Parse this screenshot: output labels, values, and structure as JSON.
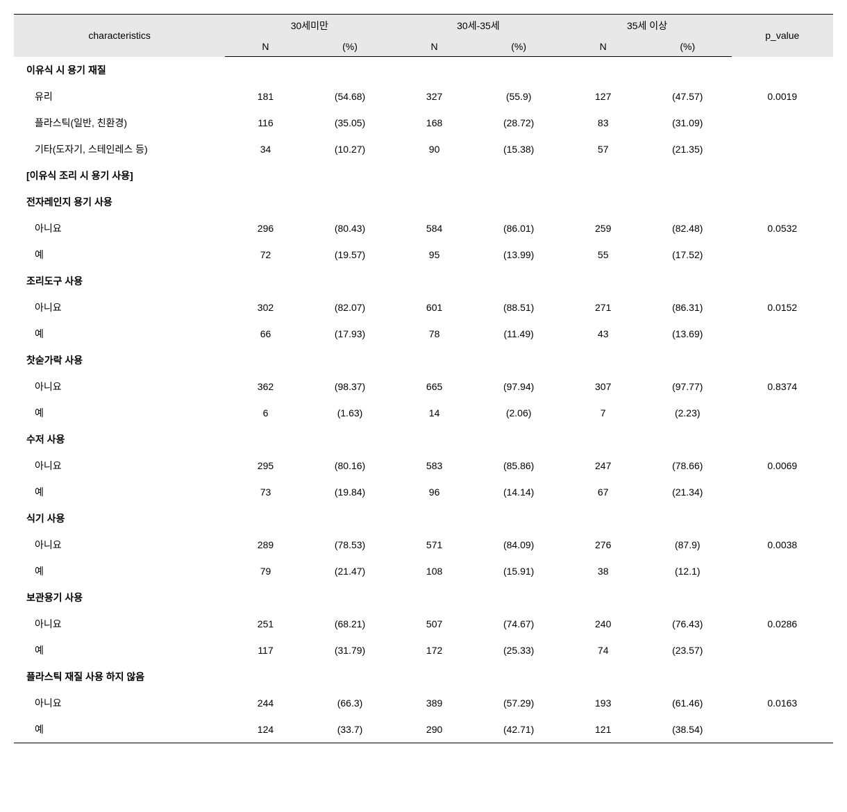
{
  "table": {
    "columns": {
      "characteristics": "characteristics",
      "group1": "30세미만",
      "group2": "30세-35세",
      "group3": "35세 이상",
      "n_label": "N",
      "pct_label": "(%)",
      "pvalue": "p_value"
    },
    "styling": {
      "header_bg": "#e8e8e8",
      "border_color": "#000000",
      "font_size": 14,
      "row_padding": 9
    },
    "sections": [
      {
        "title": "이유식 시 용기 재질",
        "rows": [
          {
            "label": "유리",
            "n1": "181",
            "p1": "(54.68)",
            "n2": "327",
            "p2": "(55.9)",
            "n3": "127",
            "p3": "(47.57)",
            "pval": "0.0019"
          },
          {
            "label": "플라스틱(일반, 친환경)",
            "n1": "116",
            "p1": "(35.05)",
            "n2": "168",
            "p2": "(28.72)",
            "n3": "83",
            "p3": "(31.09)",
            "pval": ""
          },
          {
            "label": "기타(도자기, 스테인레스 등)",
            "n1": "34",
            "p1": "(10.27)",
            "n2": "90",
            "p2": "(15.38)",
            "n3": "57",
            "p3": "(21.35)",
            "pval": ""
          }
        ]
      },
      {
        "title": "[이유식 조리 시 용기 사용]",
        "rows": []
      },
      {
        "title": "전자레인지 용기 사용",
        "rows": [
          {
            "label": "아니요",
            "n1": "296",
            "p1": "(80.43)",
            "n2": "584",
            "p2": "(86.01)",
            "n3": "259",
            "p3": "(82.48)",
            "pval": "0.0532"
          },
          {
            "label": "예",
            "n1": "72",
            "p1": "(19.57)",
            "n2": "95",
            "p2": "(13.99)",
            "n3": "55",
            "p3": "(17.52)",
            "pval": ""
          }
        ]
      },
      {
        "title": "조리도구 사용",
        "rows": [
          {
            "label": "아니요",
            "n1": "302",
            "p1": "(82.07)",
            "n2": "601",
            "p2": "(88.51)",
            "n3": "271",
            "p3": "(86.31)",
            "pval": "0.0152"
          },
          {
            "label": "예",
            "n1": "66",
            "p1": "(17.93)",
            "n2": "78",
            "p2": "(11.49)",
            "n3": "43",
            "p3": "(13.69)",
            "pval": ""
          }
        ]
      },
      {
        "title": "찻숟가락 사용",
        "rows": [
          {
            "label": "아니요",
            "n1": "362",
            "p1": "(98.37)",
            "n2": "665",
            "p2": "(97.94)",
            "n3": "307",
            "p3": "(97.77)",
            "pval": "0.8374"
          },
          {
            "label": "예",
            "n1": "6",
            "p1": "(1.63)",
            "n2": "14",
            "p2": "(2.06)",
            "n3": "7",
            "p3": "(2.23)",
            "pval": ""
          }
        ]
      },
      {
        "title": "수저 사용",
        "rows": [
          {
            "label": "아니요",
            "n1": "295",
            "p1": "(80.16)",
            "n2": "583",
            "p2": "(85.86)",
            "n3": "247",
            "p3": "(78.66)",
            "pval": "0.0069"
          },
          {
            "label": "예",
            "n1": "73",
            "p1": "(19.84)",
            "n2": "96",
            "p2": "(14.14)",
            "n3": "67",
            "p3": "(21.34)",
            "pval": ""
          }
        ]
      },
      {
        "title": "식기 사용",
        "rows": [
          {
            "label": "아니요",
            "n1": "289",
            "p1": "(78.53)",
            "n2": "571",
            "p2": "(84.09)",
            "n3": "276",
            "p3": "(87.9)",
            "pval": "0.0038"
          },
          {
            "label": "예",
            "n1": "79",
            "p1": "(21.47)",
            "n2": "108",
            "p2": "(15.91)",
            "n3": "38",
            "p3": "(12.1)",
            "pval": ""
          }
        ]
      },
      {
        "title": "보관용기 사용",
        "rows": [
          {
            "label": "아니요",
            "n1": "251",
            "p1": "(68.21)",
            "n2": "507",
            "p2": "(74.67)",
            "n3": "240",
            "p3": "(76.43)",
            "pval": "0.0286"
          },
          {
            "label": "예",
            "n1": "117",
            "p1": "(31.79)",
            "n2": "172",
            "p2": "(25.33)",
            "n3": "74",
            "p3": "(23.57)",
            "pval": ""
          }
        ]
      },
      {
        "title": "플라스틱 재질 사용 하지 않음",
        "rows": [
          {
            "label": "아니요",
            "n1": "244",
            "p1": "(66.3)",
            "n2": "389",
            "p2": "(57.29)",
            "n3": "193",
            "p3": "(61.46)",
            "pval": "0.0163"
          },
          {
            "label": "예",
            "n1": "124",
            "p1": "(33.7)",
            "n2": "290",
            "p2": "(42.71)",
            "n3": "121",
            "p3": "(38.54)",
            "pval": ""
          }
        ]
      }
    ]
  }
}
